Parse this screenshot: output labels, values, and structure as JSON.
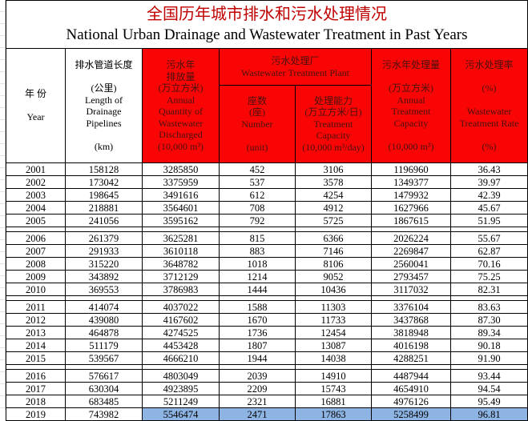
{
  "title": {
    "zh": "全国历年城市排水和污水处理情况",
    "en": "National Urban Drainage and Wastewater Treatment in Past Years"
  },
  "colors": {
    "header_red": "#fa0505",
    "header_red_text": "#47120d",
    "title_red": "#c00000",
    "highlight_blue": "#8db4e2",
    "border_black": "#000000"
  },
  "header": {
    "year": "年  份\n\nYear",
    "length": "排水管道长度\n\n(公里)\nLength of\nDrainage\nPipelines\n\n(km)",
    "discharged": "污水年\n排放量\n(万立方米)\nAnnual\nQuantity of\nWastewater\nDischarged\n(10,000 m³)",
    "plant_group": "污水处理厂\nWastewater Treatment Plant",
    "plant_number": "座数\n(座)\nNumber\n\n(unit)",
    "plant_capacity": "处理能力\n(万立方米/日)\nTreatment\nCapacity\n(10,000 m³/day)",
    "treated": "污水年处理量\n\n(万立方米)\nAnnual\nTreatment\nCapacity\n\n(10,000 m³)",
    "rate": "污水处理率\n\n(%)\n\nWastewater\nTreatment Rate\n\n(%)"
  },
  "table": {
    "columns": [
      "Year",
      "Length of Drainage Pipelines (km)",
      "Annual Quantity of Wastewater Discharged (10,000 m3)",
      "Number of Wastewater Treatment Plants (unit)",
      "Treatment Capacity (10,000 m3/day)",
      "Annual Treatment Capacity (10,000 m3)",
      "Wastewater Treatment Rate (%)"
    ],
    "rows": [
      [
        "2001",
        "158128",
        "3285850",
        "452",
        "3106",
        "1196960",
        "36.43"
      ],
      [
        "2002",
        "173042",
        "3375959",
        "537",
        "3578",
        "1349377",
        "39.97"
      ],
      [
        "2003",
        "198645",
        "3491616",
        "612",
        "4254",
        "1479932",
        "42.39"
      ],
      [
        "2004",
        "218881",
        "3564601",
        "708",
        "4912",
        "1627966",
        "45.67"
      ],
      [
        "2005",
        "241056",
        "3595162",
        "792",
        "5725",
        "1867615",
        "51.95"
      ],
      [
        "2006",
        "261379",
        "3625281",
        "815",
        "6366",
        "2026224",
        "55.67"
      ],
      [
        "2007",
        "291933",
        "3610118",
        "883",
        "7146",
        "2269847",
        "62.87"
      ],
      [
        "2008",
        "315220",
        "3648782",
        "1018",
        "8106",
        "2560041",
        "70.16"
      ],
      [
        "2009",
        "343892",
        "3712129",
        "1214",
        "9052",
        "2793457",
        "75.25"
      ],
      [
        "2010",
        "369553",
        "3786983",
        "1444",
        "10436",
        "3117032",
        "82.31"
      ],
      [
        "2011",
        "414074",
        "4037022",
        "1588",
        "11303",
        "3376104",
        "83.63"
      ],
      [
        "2012",
        "439080",
        "4167602",
        "1670",
        "11733",
        "3437868",
        "87.30"
      ],
      [
        "2013",
        "464878",
        "4274525",
        "1736",
        "12454",
        "3818948",
        "89.34"
      ],
      [
        "2014",
        "511179",
        "4453428",
        "1807",
        "13087",
        "4016198",
        "90.18"
      ],
      [
        "2015",
        "539567",
        "4666210",
        "1944",
        "14038",
        "4288251",
        "91.90"
      ],
      [
        "2016",
        "576617",
        "4803049",
        "2039",
        "14910",
        "4487944",
        "93.44"
      ],
      [
        "2017",
        "630304",
        "4923895",
        "2209",
        "15743",
        "4654910",
        "94.54"
      ],
      [
        "2018",
        "683485",
        "5211249",
        "2321",
        "16881",
        "4976126",
        "95.49"
      ],
      [
        "2019",
        "743982",
        "5546474",
        "2471",
        "17863",
        "5258499",
        "96.81"
      ]
    ],
    "group_breaks_after": [
      4,
      9,
      14
    ],
    "highlight": {
      "year": "2019",
      "start_col": 2
    }
  },
  "chart_data": {
    "type": "table",
    "title": "全国历年城市排水和污水处理情况 / National Urban Drainage and Wastewater Treatment in Past Years",
    "categories": [
      "2001",
      "2002",
      "2003",
      "2004",
      "2005",
      "2006",
      "2007",
      "2008",
      "2009",
      "2010",
      "2011",
      "2012",
      "2013",
      "2014",
      "2015",
      "2016",
      "2017",
      "2018",
      "2019"
    ],
    "series": [
      {
        "name": "Length of Drainage Pipelines (km)",
        "values": [
          158128,
          173042,
          198645,
          218881,
          241056,
          261379,
          291933,
          315220,
          343892,
          369553,
          414074,
          439080,
          464878,
          511179,
          539567,
          576617,
          630304,
          683485,
          743982
        ]
      },
      {
        "name": "Annual Quantity of Wastewater Discharged (10,000 m3)",
        "values": [
          3285850,
          3375959,
          3491616,
          3564601,
          3595162,
          3625281,
          3610118,
          3648782,
          3712129,
          3786983,
          4037022,
          4167602,
          4274525,
          4453428,
          4666210,
          4803049,
          4923895,
          5211249,
          5546474
        ]
      },
      {
        "name": "Wastewater Treatment Plants - Number (unit)",
        "values": [
          452,
          537,
          612,
          708,
          792,
          815,
          883,
          1018,
          1214,
          1444,
          1588,
          1670,
          1736,
          1807,
          1944,
          2039,
          2209,
          2321,
          2471
        ]
      },
      {
        "name": "Wastewater Treatment Plants - Treatment Capacity (10,000 m3/day)",
        "values": [
          3106,
          3578,
          4254,
          4912,
          5725,
          6366,
          7146,
          8106,
          9052,
          10436,
          11303,
          11733,
          12454,
          13087,
          14038,
          14910,
          15743,
          16881,
          17863
        ]
      },
      {
        "name": "Annual Treatment Capacity (10,000 m3)",
        "values": [
          1196960,
          1349377,
          1479932,
          1627966,
          1867615,
          2026224,
          2269847,
          2560041,
          2793457,
          3117032,
          3376104,
          3437868,
          3818948,
          4016198,
          4288251,
          4487944,
          4654910,
          4976126,
          5258499
        ]
      },
      {
        "name": "Wastewater Treatment Rate (%)",
        "values": [
          36.43,
          39.97,
          42.39,
          45.67,
          51.95,
          55.67,
          62.87,
          70.16,
          75.25,
          82.31,
          83.63,
          87.3,
          89.34,
          90.18,
          91.9,
          93.44,
          94.54,
          95.49,
          96.81
        ]
      }
    ]
  }
}
